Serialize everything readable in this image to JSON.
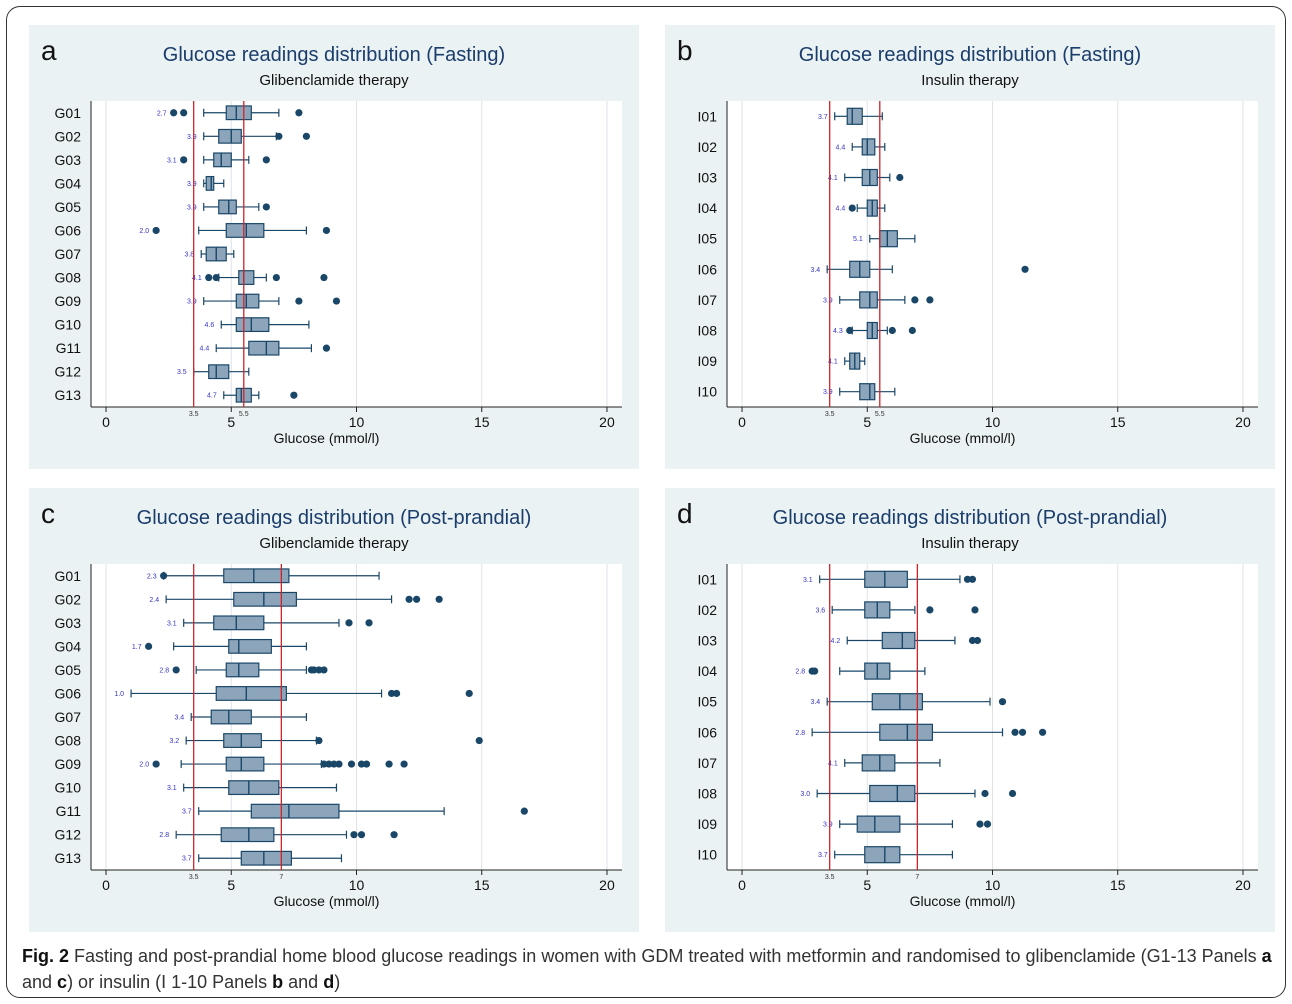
{
  "colors": {
    "panel_bg": "#eaf2f3",
    "box_fill": "#8da5bb",
    "box_stroke": "#1a4768",
    "ref_line": "#d0232a",
    "title": "#1b3d6b",
    "outlier": "#1a4768",
    "min_label": "#3434c8",
    "grid": "#dde3e8"
  },
  "caption": {
    "fig": "Fig. 2",
    "text1": " Fasting and post-prandial home blood glucose readings in women with GDM treated with metformin and randomised to glibenclamide (G1-13 Panels ",
    "p1": "a",
    "and1": " and ",
    "p2": "c",
    "text2": ") or insulin (I 1-10 Panels ",
    "p3": "b",
    "and2": " and ",
    "p4": "d",
    "text3": ")"
  },
  "chart_data": [
    {
      "id": "a",
      "type": "boxplot",
      "orientation": "horizontal",
      "title": "Glucose readings distribution (Fasting)",
      "subtitle": "Glibenclamide therapy",
      "xlabel": "Glucose (mmol/l)",
      "xlim": [
        -0.6,
        20.6
      ],
      "xticks": [
        0,
        5,
        10,
        15,
        20
      ],
      "ref_lines": [
        {
          "value": 3.5,
          "label": "3.5"
        },
        {
          "value": 5.5,
          "label": "5.5"
        }
      ],
      "grid": true,
      "series": [
        {
          "name": "G01",
          "min": 3.9,
          "q1": 4.8,
          "median": 5.2,
          "q3": 5.8,
          "max": 6.9,
          "min_label": "2.7",
          "outliers": [
            2.7,
            3.1,
            7.7
          ]
        },
        {
          "name": "G02",
          "min": 3.9,
          "q1": 4.5,
          "median": 5.0,
          "q3": 5.4,
          "max": 6.8,
          "min_label": "3.9",
          "outliers": [
            6.9,
            8.0
          ]
        },
        {
          "name": "G03",
          "min": 3.9,
          "q1": 4.3,
          "median": 4.6,
          "q3": 5.0,
          "max": 5.7,
          "min_label": "3.1",
          "outliers": [
            3.1,
            6.4
          ]
        },
        {
          "name": "G04",
          "min": 3.9,
          "q1": 4.0,
          "median": 4.2,
          "q3": 4.3,
          "max": 4.7,
          "min_label": "3.9",
          "outliers": []
        },
        {
          "name": "G05",
          "min": 3.9,
          "q1": 4.5,
          "median": 4.9,
          "q3": 5.2,
          "max": 6.1,
          "min_label": "3.9",
          "outliers": [
            6.4
          ]
        },
        {
          "name": "G06",
          "min": 3.7,
          "q1": 4.8,
          "median": 5.6,
          "q3": 6.3,
          "max": 8.0,
          "min_label": "2.0",
          "outliers": [
            2.0,
            8.8
          ]
        },
        {
          "name": "G07",
          "min": 3.8,
          "q1": 4.0,
          "median": 4.4,
          "q3": 4.8,
          "max": 5.1,
          "min_label": "3.8",
          "outliers": []
        },
        {
          "name": "G08",
          "min": 4.5,
          "q1": 5.3,
          "median": 5.5,
          "q3": 5.9,
          "max": 6.4,
          "min_label": "4.1",
          "outliers": [
            4.1,
            4.4,
            6.8,
            8.7
          ]
        },
        {
          "name": "G09",
          "min": 3.9,
          "q1": 5.2,
          "median": 5.6,
          "q3": 6.1,
          "max": 6.9,
          "min_label": "3.9",
          "outliers": [
            7.7,
            9.2
          ]
        },
        {
          "name": "G10",
          "min": 4.6,
          "q1": 5.2,
          "median": 5.8,
          "q3": 6.5,
          "max": 8.1,
          "min_label": "4.6",
          "outliers": []
        },
        {
          "name": "G11",
          "min": 4.4,
          "q1": 5.7,
          "median": 6.4,
          "q3": 6.9,
          "max": 8.2,
          "min_label": "4.4",
          "outliers": [
            8.8
          ]
        },
        {
          "name": "G12",
          "min": 3.5,
          "q1": 4.1,
          "median": 4.4,
          "q3": 4.9,
          "max": 5.7,
          "min_label": "3.5",
          "outliers": []
        },
        {
          "name": "G13",
          "min": 4.7,
          "q1": 5.2,
          "median": 5.4,
          "q3": 5.8,
          "max": 6.1,
          "min_label": "4.7",
          "outliers": [
            7.5
          ]
        }
      ]
    },
    {
      "id": "b",
      "type": "boxplot",
      "orientation": "horizontal",
      "title": "Glucose readings distribution (Fasting)",
      "subtitle": "Insulin therapy",
      "xlabel": "Glucose (mmol/l)",
      "xlim": [
        -0.6,
        20.6
      ],
      "xticks": [
        0,
        5,
        10,
        15,
        20
      ],
      "ref_lines": [
        {
          "value": 3.5,
          "label": "3.5"
        },
        {
          "value": 5.5,
          "label": "5.5"
        }
      ],
      "grid": true,
      "series": [
        {
          "name": "I01",
          "min": 3.7,
          "q1": 4.2,
          "median": 4.4,
          "q3": 4.8,
          "max": 5.6,
          "min_label": "3.7",
          "outliers": []
        },
        {
          "name": "I02",
          "min": 4.4,
          "q1": 4.8,
          "median": 5.0,
          "q3": 5.3,
          "max": 5.7,
          "min_label": "4.4",
          "outliers": []
        },
        {
          "name": "I03",
          "min": 4.1,
          "q1": 4.8,
          "median": 5.1,
          "q3": 5.4,
          "max": 5.9,
          "min_label": "4.1",
          "outliers": [
            6.3
          ]
        },
        {
          "name": "I04",
          "min": 4.6,
          "q1": 5.0,
          "median": 5.2,
          "q3": 5.4,
          "max": 5.7,
          "min_label": "4.4",
          "outliers": [
            4.4
          ]
        },
        {
          "name": "I05",
          "min": 5.1,
          "q1": 5.5,
          "median": 5.8,
          "q3": 6.2,
          "max": 6.9,
          "min_label": "5.1",
          "outliers": []
        },
        {
          "name": "I06",
          "min": 3.4,
          "q1": 4.3,
          "median": 4.7,
          "q3": 5.1,
          "max": 6.0,
          "min_label": "3.4",
          "outliers": [
            11.3
          ]
        },
        {
          "name": "I07",
          "min": 3.9,
          "q1": 4.7,
          "median": 5.1,
          "q3": 5.4,
          "max": 6.5,
          "min_label": "3.9",
          "outliers": [
            6.9,
            7.5
          ]
        },
        {
          "name": "I08",
          "min": 4.4,
          "q1": 5.0,
          "median": 5.2,
          "q3": 5.4,
          "max": 5.8,
          "min_label": "4.3",
          "outliers": [
            4.3,
            6.0,
            6.8
          ]
        },
        {
          "name": "I09",
          "min": 4.1,
          "q1": 4.3,
          "median": 4.5,
          "q3": 4.7,
          "max": 4.9,
          "min_label": "4.1",
          "outliers": []
        },
        {
          "name": "I10",
          "min": 3.9,
          "q1": 4.7,
          "median": 5.1,
          "q3": 5.3,
          "max": 6.1,
          "min_label": "3.9",
          "outliers": []
        }
      ]
    },
    {
      "id": "c",
      "type": "boxplot",
      "orientation": "horizontal",
      "title": "Glucose readings distribution (Post-prandial)",
      "subtitle": "Glibenclamide therapy",
      "xlabel": "Glucose (mmol/l)",
      "xlim": [
        -0.6,
        20.6
      ],
      "xticks": [
        0,
        5,
        10,
        15,
        20
      ],
      "ref_lines": [
        {
          "value": 3.5,
          "label": "3.5"
        },
        {
          "value": 7.0,
          "label": "7"
        }
      ],
      "grid": true,
      "series": [
        {
          "name": "G01",
          "min": 2.3,
          "q1": 4.7,
          "median": 5.9,
          "q3": 7.3,
          "max": 10.9,
          "min_label": "2.3",
          "outliers": [
            2.3
          ]
        },
        {
          "name": "G02",
          "min": 2.4,
          "q1": 5.1,
          "median": 6.3,
          "q3": 7.6,
          "max": 11.4,
          "min_label": "2.4",
          "outliers": [
            12.1,
            12.4,
            13.3
          ]
        },
        {
          "name": "G03",
          "min": 3.1,
          "q1": 4.3,
          "median": 5.2,
          "q3": 6.3,
          "max": 9.3,
          "min_label": "3.1",
          "outliers": [
            9.7,
            10.5
          ]
        },
        {
          "name": "G04",
          "min": 2.7,
          "q1": 4.9,
          "median": 5.3,
          "q3": 6.6,
          "max": 8.0,
          "min_label": "1.7",
          "outliers": [
            1.7
          ]
        },
        {
          "name": "G05",
          "min": 3.6,
          "q1": 4.8,
          "median": 5.3,
          "q3": 6.1,
          "max": 8.0,
          "min_label": "2.8",
          "outliers": [
            2.8,
            8.2,
            8.3,
            8.5,
            8.7
          ]
        },
        {
          "name": "G06",
          "min": 1.0,
          "q1": 4.4,
          "median": 5.6,
          "q3": 7.2,
          "max": 11.0,
          "min_label": "1.0",
          "outliers": [
            11.4,
            11.6,
            14.5
          ]
        },
        {
          "name": "G07",
          "min": 3.4,
          "q1": 4.2,
          "median": 4.9,
          "q3": 5.8,
          "max": 8.0,
          "min_label": "3.4",
          "outliers": []
        },
        {
          "name": "G08",
          "min": 3.2,
          "q1": 4.7,
          "median": 5.4,
          "q3": 6.2,
          "max": 8.4,
          "min_label": "3.2",
          "outliers": [
            8.5,
            14.9
          ]
        },
        {
          "name": "G09",
          "min": 3.0,
          "q1": 4.8,
          "median": 5.4,
          "q3": 6.3,
          "max": 8.6,
          "min_label": "2.0",
          "outliers": [
            2.0,
            8.7,
            8.9,
            9.1,
            9.3,
            9.8,
            10.2,
            10.4,
            11.3,
            11.9
          ]
        },
        {
          "name": "G10",
          "min": 3.1,
          "q1": 4.9,
          "median": 5.7,
          "q3": 6.9,
          "max": 9.2,
          "min_label": "3.1",
          "outliers": []
        },
        {
          "name": "G11",
          "min": 3.7,
          "q1": 5.8,
          "median": 7.3,
          "q3": 9.3,
          "max": 13.5,
          "min_label": "3.7",
          "outliers": [
            16.7
          ]
        },
        {
          "name": "G12",
          "min": 2.8,
          "q1": 4.6,
          "median": 5.7,
          "q3": 6.7,
          "max": 9.6,
          "min_label": "2.8",
          "outliers": [
            9.9,
            10.2,
            11.5
          ]
        },
        {
          "name": "G13",
          "min": 3.7,
          "q1": 5.4,
          "median": 6.3,
          "q3": 7.4,
          "max": 9.4,
          "min_label": "3.7",
          "outliers": []
        }
      ]
    },
    {
      "id": "d",
      "type": "boxplot",
      "orientation": "horizontal",
      "title": "Glucose readings distribution (Post-prandial)",
      "subtitle": "Insulin therapy",
      "xlabel": "Glucose (mmol/l)",
      "xlim": [
        -0.6,
        20.6
      ],
      "xticks": [
        0,
        5,
        10,
        15,
        20
      ],
      "ref_lines": [
        {
          "value": 3.5,
          "label": "3.5"
        },
        {
          "value": 7.0,
          "label": "7"
        }
      ],
      "grid": true,
      "series": [
        {
          "name": "I01",
          "min": 3.1,
          "q1": 4.9,
          "median": 5.7,
          "q3": 6.6,
          "max": 8.7,
          "min_label": "3.1",
          "outliers": [
            9.0,
            9.2
          ]
        },
        {
          "name": "I02",
          "min": 3.6,
          "q1": 4.9,
          "median": 5.4,
          "q3": 5.9,
          "max": 6.9,
          "min_label": "3.6",
          "outliers": [
            7.5,
            9.3
          ]
        },
        {
          "name": "I03",
          "min": 4.2,
          "q1": 5.6,
          "median": 6.4,
          "q3": 6.9,
          "max": 8.5,
          "min_label": "4.2",
          "outliers": [
            9.2,
            9.4
          ]
        },
        {
          "name": "I04",
          "min": 3.9,
          "q1": 4.9,
          "median": 5.4,
          "q3": 5.9,
          "max": 7.3,
          "min_label": "2.8",
          "outliers": [
            2.8,
            2.9
          ]
        },
        {
          "name": "I05",
          "min": 3.4,
          "q1": 5.2,
          "median": 6.3,
          "q3": 7.2,
          "max": 9.9,
          "min_label": "3.4",
          "outliers": [
            10.4
          ]
        },
        {
          "name": "I06",
          "min": 2.8,
          "q1": 5.5,
          "median": 6.6,
          "q3": 7.6,
          "max": 10.4,
          "min_label": "2.8",
          "outliers": [
            10.9,
            11.2,
            12.0
          ]
        },
        {
          "name": "I07",
          "min": 4.1,
          "q1": 4.8,
          "median": 5.5,
          "q3": 6.1,
          "max": 7.9,
          "min_label": "4.1",
          "outliers": []
        },
        {
          "name": "I08",
          "min": 3.0,
          "q1": 5.1,
          "median": 6.2,
          "q3": 6.9,
          "max": 9.3,
          "min_label": "3.0",
          "outliers": [
            9.7,
            10.8
          ]
        },
        {
          "name": "I09",
          "min": 3.9,
          "q1": 4.6,
          "median": 5.3,
          "q3": 6.3,
          "max": 8.4,
          "min_label": "3.9",
          "outliers": [
            9.5,
            9.8
          ]
        },
        {
          "name": "I10",
          "min": 3.7,
          "q1": 4.9,
          "median": 5.7,
          "q3": 6.3,
          "max": 8.4,
          "min_label": "3.7",
          "outliers": []
        }
      ]
    }
  ]
}
